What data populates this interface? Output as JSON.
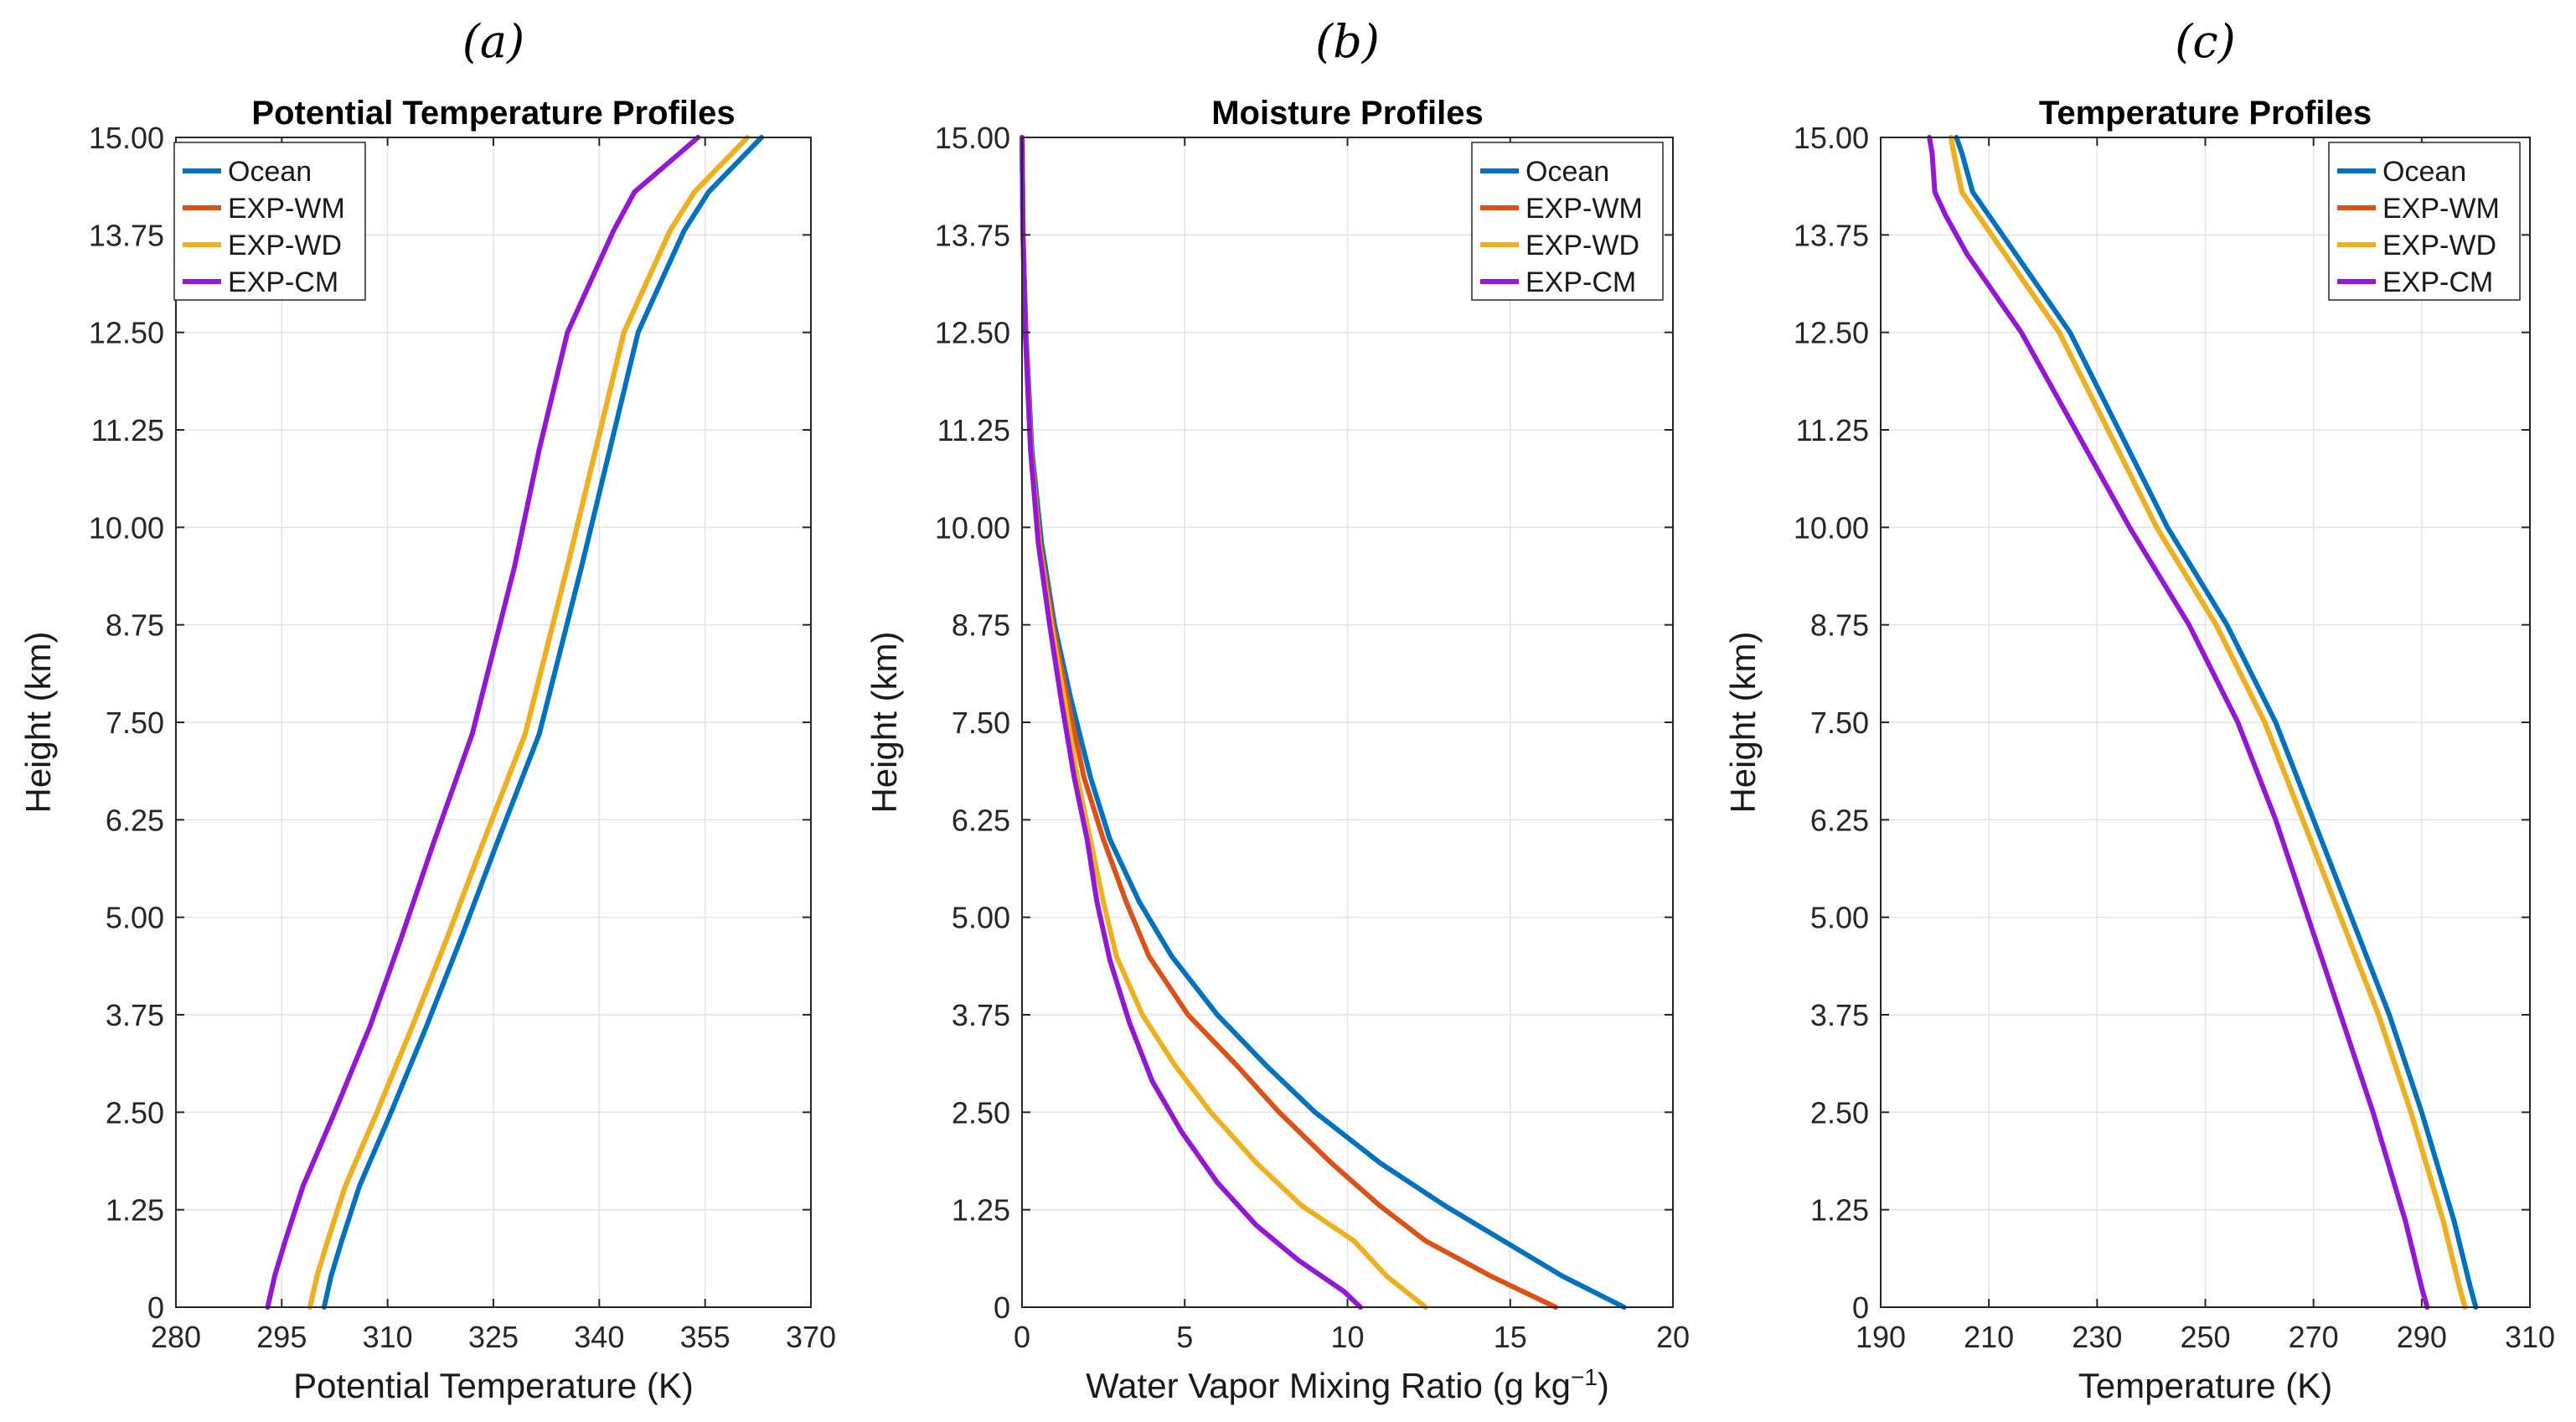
{
  "chart_data": [
    {
      "type": "line",
      "panel_label": "(a)",
      "title": "Potential Temperature Profiles",
      "xlabel": "Potential Temperature (K)",
      "ylabel": "Height (km)",
      "xlim": [
        280,
        370
      ],
      "ylim": [
        0,
        15
      ],
      "xticks": [
        280,
        295,
        310,
        325,
        340,
        355,
        370
      ],
      "xtick_labels": [
        "280",
        "295",
        "310",
        "325",
        "340",
        "355",
        "370"
      ],
      "yticks": [
        0,
        1.25,
        2.5,
        3.75,
        5,
        6.25,
        7.5,
        8.75,
        10,
        11.25,
        12.5,
        13.75,
        15
      ],
      "ytick_labels": [
        "0",
        "1.25",
        "2.50",
        "3.75",
        "5.00",
        "6.25",
        "7.50",
        "8.75",
        "10.00",
        "11.25",
        "12.50",
        "13.75",
        "15.00"
      ],
      "grid": true,
      "legend_location": "top-left",
      "series": [
        {
          "name": "Ocean",
          "color": "#0072BD",
          "x": [
            301,
            302,
            303.5,
            306,
            310.5,
            315.5,
            320.5,
            325.5,
            331.5,
            337.5,
            341.5,
            345.5,
            348,
            352,
            355.5,
            363
          ],
          "y": [
            0,
            0.4,
            0.85,
            1.55,
            2.5,
            3.6,
            4.75,
            5.95,
            7.35,
            9.5,
            11,
            12.5,
            13,
            13.8,
            14.3,
            15
          ]
        },
        {
          "name": "EXP-WM",
          "color": "#D95319",
          "x": [
            299,
            300,
            301.5,
            304,
            308.5,
            313.5,
            318.5,
            323.5,
            329.5,
            335.5,
            339.5,
            343.5,
            346,
            350,
            353.5,
            361
          ],
          "y": [
            0,
            0.4,
            0.85,
            1.55,
            2.5,
            3.6,
            4.75,
            5.95,
            7.35,
            9.5,
            11,
            12.5,
            13,
            13.8,
            14.3,
            15
          ]
        },
        {
          "name": "EXP-WD",
          "color": "#EDB120",
          "x": [
            299,
            300,
            301.5,
            304,
            308.5,
            313.5,
            318.5,
            323.5,
            329.5,
            335.5,
            339.5,
            343.5,
            346,
            350,
            353.5,
            361
          ],
          "y": [
            0,
            0.4,
            0.85,
            1.55,
            2.5,
            3.6,
            4.75,
            5.95,
            7.35,
            9.5,
            11,
            12.5,
            13,
            13.8,
            14.3,
            15
          ]
        },
        {
          "name": "EXP-CM",
          "color": "#9417D4",
          "x": [
            293,
            294,
            295.5,
            298,
            302.5,
            307.5,
            312,
            316.5,
            322,
            328,
            331.5,
            335.5,
            338,
            342,
            345,
            354
          ],
          "y": [
            0,
            0.4,
            0.85,
            1.55,
            2.5,
            3.6,
            4.75,
            5.95,
            7.35,
            9.5,
            11,
            12.5,
            13,
            13.8,
            14.3,
            15
          ]
        }
      ]
    },
    {
      "type": "line",
      "panel_label": "(b)",
      "title": "Moisture Profiles",
      "xlabel": "Water  Vapor  Mixing  Ratio  (g  kg",
      "xlabel_sup": "−1",
      "xlabel_end": ")",
      "ylabel": "Height (km)",
      "xlim": [
        0,
        20
      ],
      "ylim": [
        0,
        15
      ],
      "xticks": [
        0,
        5,
        10,
        15,
        20
      ],
      "xtick_labels": [
        "0",
        "5",
        "10",
        "15",
        "20"
      ],
      "yticks": [
        0,
        1.25,
        2.5,
        3.75,
        5,
        6.25,
        7.5,
        8.75,
        10,
        11.25,
        12.5,
        13.75,
        15
      ],
      "ytick_labels": [
        "0",
        "1.25",
        "2.50",
        "3.75",
        "5.00",
        "6.25",
        "7.50",
        "8.75",
        "10.00",
        "11.25",
        "12.50",
        "13.75",
        "15.00"
      ],
      "grid": true,
      "legend_location": "top-right",
      "series": [
        {
          "name": "Ocean",
          "color": "#0072BD",
          "x": [
            18.5,
            16.6,
            14.8,
            13,
            11,
            9,
            7.5,
            6,
            4.6,
            3.6,
            2.7,
            2.1,
            1.5,
            1,
            0.6,
            0.3,
            0.12,
            0.03,
            0
          ],
          "y": [
            0,
            0.4,
            0.85,
            1.3,
            1.85,
            2.5,
            3.1,
            3.75,
            4.5,
            5.2,
            6,
            6.8,
            7.8,
            8.75,
            9.8,
            11,
            12.5,
            13.75,
            15
          ]
        },
        {
          "name": "EXP-WM",
          "color": "#D95319",
          "x": [
            16.4,
            14.4,
            12.4,
            11,
            9.5,
            7.9,
            6.6,
            5.1,
            3.9,
            3.2,
            2.5,
            1.9,
            1.4,
            0.95,
            0.55,
            0.28,
            0.11,
            0.03,
            0
          ],
          "y": [
            0,
            0.4,
            0.85,
            1.3,
            1.85,
            2.5,
            3.1,
            3.75,
            4.5,
            5.2,
            6,
            6.8,
            7.8,
            8.75,
            9.8,
            11,
            12.5,
            13.75,
            15
          ]
        },
        {
          "name": "EXP-WD",
          "color": "#EDB120",
          "x": [
            12.4,
            11.2,
            10.2,
            8.6,
            7.2,
            5.8,
            4.7,
            3.7,
            2.9,
            2.5,
            2.1,
            1.7,
            1.3,
            0.9,
            0.52,
            0.27,
            0.1,
            0.03,
            0
          ],
          "y": [
            0,
            0.4,
            0.85,
            1.3,
            1.85,
            2.5,
            3.1,
            3.75,
            4.5,
            5.2,
            6,
            6.8,
            7.8,
            8.75,
            9.8,
            11,
            12.5,
            13.75,
            15
          ]
        },
        {
          "name": "EXP-CM",
          "color": "#9417D4",
          "x": [
            10.4,
            9.9,
            8.5,
            7.2,
            6,
            4.9,
            4,
            3.3,
            2.7,
            2.3,
            2,
            1.6,
            1.2,
            0.85,
            0.5,
            0.26,
            0.1,
            0.03,
            0
          ],
          "y": [
            0,
            0.2,
            0.6,
            1.05,
            1.6,
            2.25,
            2.9,
            3.65,
            4.45,
            5.2,
            6,
            6.8,
            7.8,
            8.75,
            9.8,
            11,
            12.5,
            13.75,
            15
          ]
        }
      ]
    },
    {
      "type": "line",
      "panel_label": "(c)",
      "title": "Temperature Profiles",
      "xlabel": "Temperature  (K)",
      "ylabel": "Height (km)",
      "xlim": [
        190,
        310
      ],
      "ylim": [
        0,
        15
      ],
      "xticks": [
        190,
        210,
        230,
        250,
        270,
        290,
        310
      ],
      "xtick_labels": [
        "190",
        "210",
        "230",
        "250",
        "270",
        "290",
        "310"
      ],
      "yticks": [
        0,
        1.25,
        2.5,
        3.75,
        5,
        6.25,
        7.5,
        8.75,
        10,
        11.25,
        12.5,
        13.75,
        15
      ],
      "ytick_labels": [
        "0",
        "1.25",
        "2.50",
        "3.75",
        "5.00",
        "6.25",
        "7.50",
        "8.75",
        "10.00",
        "11.25",
        "12.50",
        "13.75",
        "15.00"
      ],
      "grid": true,
      "legend_location": "top-right",
      "series": [
        {
          "name": "Ocean",
          "color": "#0072BD",
          "x": [
            300,
            299,
            296,
            290,
            284,
            277,
            270,
            263,
            254,
            243,
            234,
            225,
            215,
            210,
            207,
            205,
            204
          ],
          "y": [
            0,
            0.25,
            1.1,
            2.5,
            3.75,
            5,
            6.25,
            7.5,
            8.75,
            10,
            11.25,
            12.5,
            13.5,
            14,
            14.3,
            14.8,
            15
          ]
        },
        {
          "name": "EXP-WM",
          "color": "#D95319",
          "x": [
            298,
            297,
            294,
            288,
            282,
            275,
            268,
            261,
            252,
            241,
            232,
            223,
            213,
            208,
            205,
            203.5,
            203
          ],
          "y": [
            0,
            0.25,
            1.1,
            2.5,
            3.75,
            5,
            6.25,
            7.5,
            8.75,
            10,
            11.25,
            12.5,
            13.5,
            14,
            14.3,
            14.8,
            15
          ]
        },
        {
          "name": "EXP-WD",
          "color": "#EDB120",
          "x": [
            298,
            297,
            294,
            288,
            282,
            275,
            268,
            261,
            252,
            241,
            232,
            223,
            213,
            208,
            205,
            203.5,
            203
          ],
          "y": [
            0,
            0.25,
            1.1,
            2.5,
            3.75,
            5,
            6.25,
            7.5,
            8.75,
            10,
            11.25,
            12.5,
            13.5,
            14,
            14.3,
            14.8,
            15
          ]
        },
        {
          "name": "EXP-CM",
          "color": "#9417D4",
          "x": [
            291,
            290,
            287,
            281,
            275,
            269,
            263,
            256,
            247,
            236,
            226,
            216,
            206,
            202,
            200,
            199.5,
            199
          ],
          "y": [
            0,
            0.25,
            1.1,
            2.5,
            3.75,
            5,
            6.25,
            7.5,
            8.75,
            10,
            11.25,
            12.5,
            13.5,
            14,
            14.3,
            14.8,
            15
          ]
        }
      ]
    }
  ]
}
